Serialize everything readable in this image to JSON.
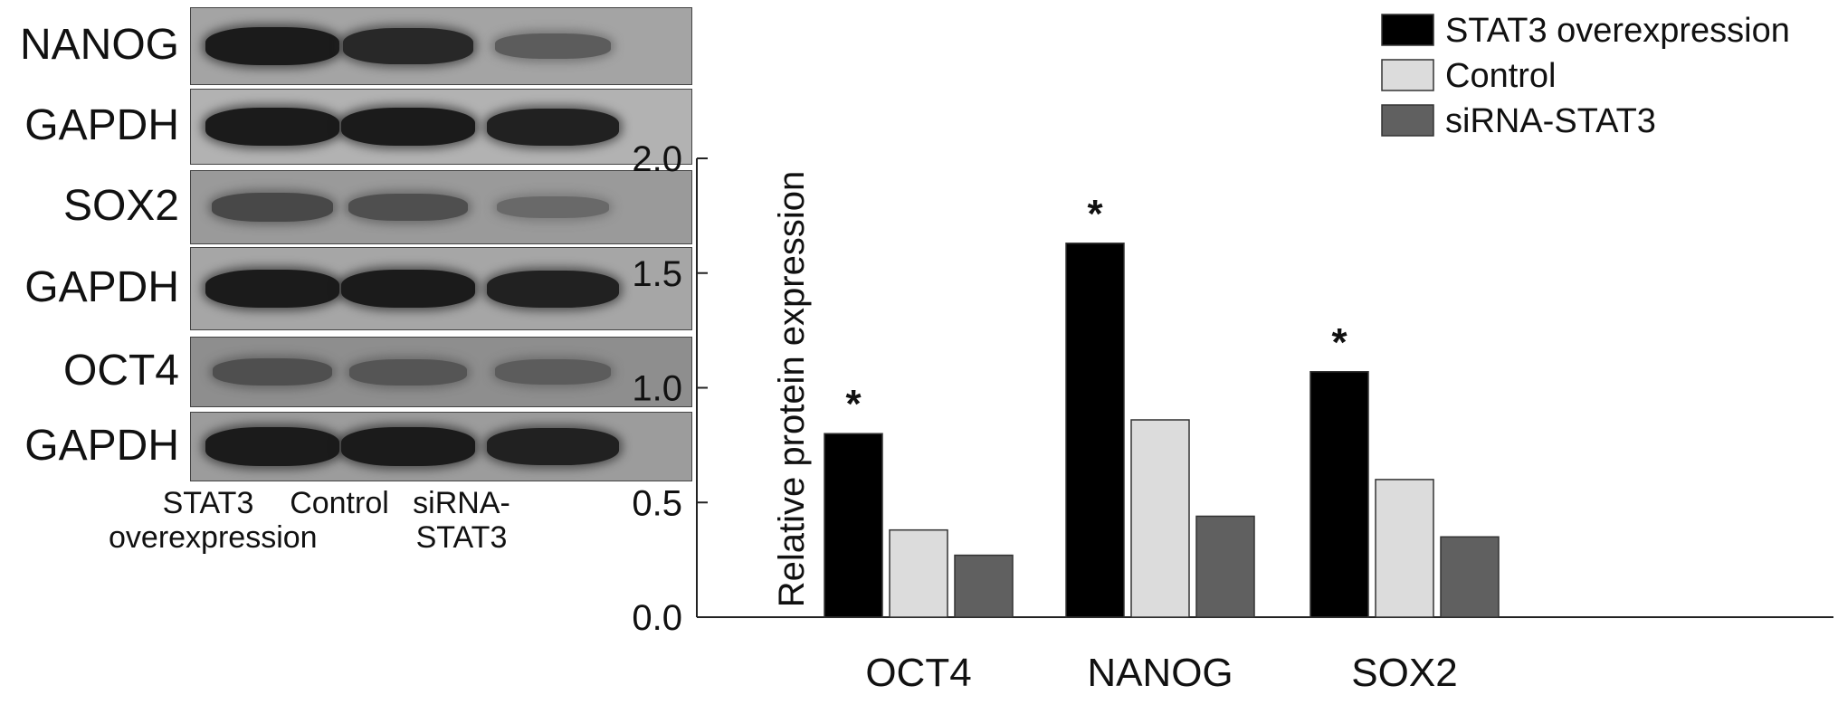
{
  "blot": {
    "panels": [
      {
        "label": "NANOG",
        "bg": "#a4a4a4",
        "band_strength": [
          0.95,
          0.85,
          0.45
        ]
      },
      {
        "label": "GAPDH",
        "bg": "#b2b2b2",
        "band_strength": [
          0.95,
          0.95,
          0.9
        ]
      },
      {
        "label": "SOX2",
        "bg": "#9a9a9a",
        "band_strength": [
          0.6,
          0.55,
          0.35
        ]
      },
      {
        "label": "GAPDH",
        "bg": "#a6a6a6",
        "band_strength": [
          0.95,
          0.95,
          0.9
        ]
      },
      {
        "label": "OCT4",
        "bg": "#8e8e8e",
        "band_strength": [
          0.55,
          0.5,
          0.45
        ]
      },
      {
        "label": "GAPDH",
        "bg": "#9c9c9c",
        "band_strength": [
          0.95,
          0.95,
          0.9
        ]
      }
    ],
    "lanes": [
      {
        "line1": "STAT3",
        "line2": "overexpression"
      },
      {
        "line1": "Control",
        "line2": ""
      },
      {
        "line1": "siRNA-",
        "line2": "STAT3"
      }
    ]
  },
  "chart_data": {
    "type": "bar",
    "categories": [
      "OCT4",
      "NANOG",
      "SOX2"
    ],
    "series": [
      {
        "name": "STAT3 overexpression",
        "color": "#000000",
        "values": [
          0.8,
          1.63,
          1.07
        ]
      },
      {
        "name": "Control",
        "color": "#dcdcdc",
        "values": [
          0.38,
          0.86,
          0.6
        ]
      },
      {
        "name": "siRNA-STAT3",
        "color": "#606060",
        "values": [
          0.27,
          0.44,
          0.35
        ]
      }
    ],
    "significance": [
      "*",
      "*",
      "*"
    ],
    "ylabel": "Relative protein expression",
    "ylim": [
      0,
      2.0
    ],
    "yticks": [
      "0.0",
      "0.5",
      "1.0",
      "1.5",
      "2.0"
    ],
    "legend_position": "top-right",
    "grid": false
  }
}
